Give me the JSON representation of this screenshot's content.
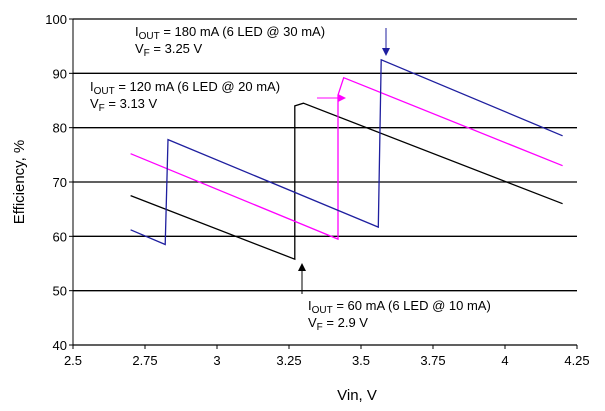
{
  "chart_data": {
    "type": "line",
    "xlabel": "Vin, V",
    "ylabel": "Efficiency, %",
    "xlim": [
      2.5,
      4.25
    ],
    "ylim": [
      40,
      100
    ],
    "xticks": [
      2.5,
      2.75,
      3,
      3.25,
      3.5,
      3.75,
      4,
      4.25
    ],
    "xtick_labels": [
      "2.5",
      "2.75",
      "3",
      "3.25",
      "3.5",
      "3.75",
      "4",
      "4.25"
    ],
    "yticks": [
      40,
      50,
      60,
      70,
      80,
      90,
      100
    ],
    "ytick_labels": [
      "40",
      "50",
      "60",
      "70",
      "80",
      "90",
      "100"
    ],
    "grid": "horizontal",
    "series": [
      {
        "color": "#000000",
        "x": [
          2.7,
          3.27,
          3.27,
          3.3,
          4.2
        ],
        "y": [
          67.5,
          55.8,
          84,
          84.5,
          66
        ]
      },
      {
        "color": "#ff00ff",
        "x": [
          2.7,
          3.42,
          3.42,
          3.44,
          4.2
        ],
        "y": [
          75.2,
          59.5,
          86,
          89.2,
          73
        ]
      },
      {
        "color": "#1f1f9f",
        "x": [
          2.7,
          2.82,
          2.83,
          3.56,
          3.57,
          4.2
        ],
        "y": [
          61.2,
          58.5,
          77.8,
          61.7,
          92.5,
          78.5
        ]
      }
    ],
    "annotations": [
      {
        "id": "a180",
        "line1": {
          "pre": "I",
          "sub": "OUT",
          "post": " = 180 mA (6 LED @ 30 mA)"
        },
        "line2": {
          "pre": "V",
          "sub": "F",
          "post": " = 3.25 V"
        }
      },
      {
        "id": "a120",
        "line1": {
          "pre": "I",
          "sub": "OUT",
          "post": " = 120 mA (6 LED @ 20 mA)"
        },
        "line2": {
          "pre": "V",
          "sub": "F",
          "post": " = 3.13 V"
        }
      },
      {
        "id": "a60",
        "line1": {
          "pre": "I",
          "sub": "OUT",
          "post": " = 60 mA (6 LED @ 10 mA)"
        },
        "line2": {
          "pre": "V",
          "sub": "F",
          "post": " = 2.9 V"
        }
      }
    ]
  }
}
